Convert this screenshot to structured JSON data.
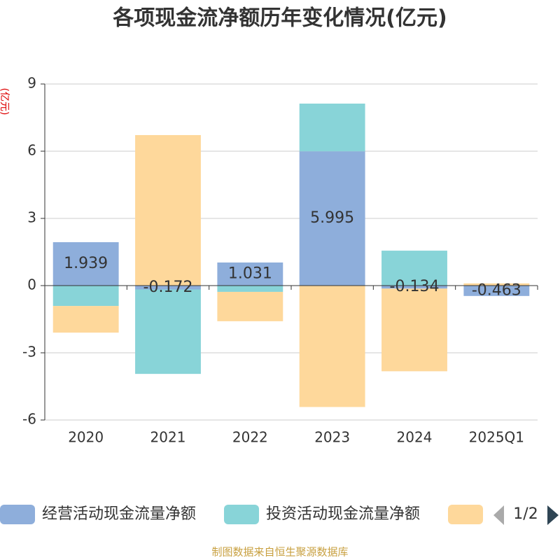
{
  "chart_data": {
    "type": "stacked_bar",
    "title": "各项现金流净额历年变化情况(亿元)",
    "y_axis_label": "(亿元)",
    "categories": [
      "2020",
      "2021",
      "2022",
      "2023",
      "2024",
      "2025Q1"
    ],
    "series": [
      {
        "name": "经营活动现金流量净额",
        "color": "#8eaedb",
        "values": [
          1.939,
          -0.172,
          1.031,
          5.995,
          -0.134,
          -0.463
        ]
      },
      {
        "name": "投资活动现金流量净额",
        "color": "#88d4d8",
        "values": [
          -0.91,
          -3.77,
          -0.28,
          2.13,
          1.56,
          0
        ]
      },
      {
        "color": "#fed89b",
        "values": [
          -1.19,
          6.72,
          -1.31,
          -5.42,
          -3.69,
          0.1
        ]
      }
    ],
    "ylim": [
      -6,
      9
    ],
    "yticks": [
      -6,
      -3,
      0,
      3,
      6,
      9
    ],
    "grid": true,
    "legend_page": "1/2",
    "source": "制图数据来自恒生聚源数据库"
  }
}
